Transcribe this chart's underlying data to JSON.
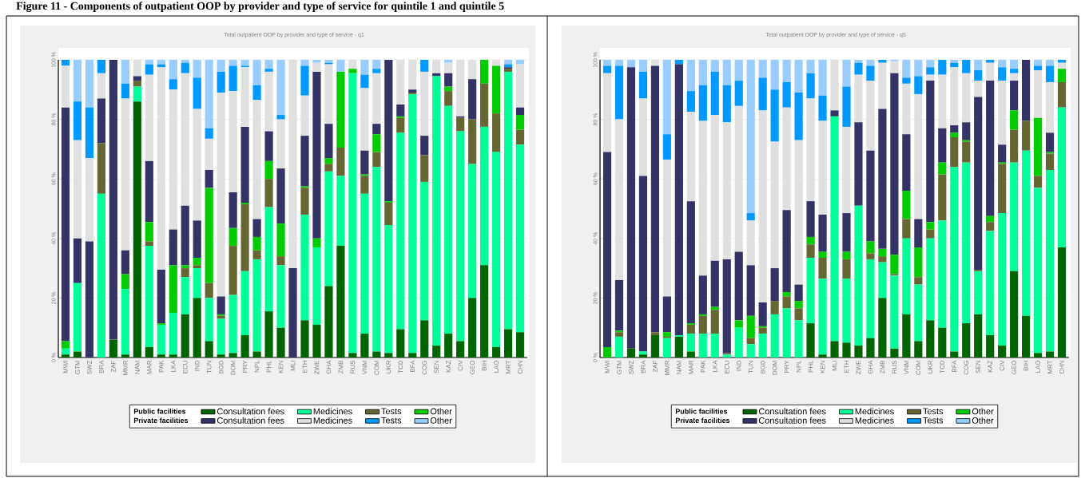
{
  "chart_data": [
    {
      "type": "bar",
      "stacked": true,
      "title": "Total outpatient OOP by provider and type of service - q1",
      "categories": [
        "MWI",
        "GTM",
        "SWZ",
        "BRA",
        "ZAF",
        "MMR",
        "NAM",
        "MAR",
        "PAK",
        "LKA",
        "ECU",
        "IND",
        "TUN",
        "BGD",
        "DOM",
        "PRY",
        "NPL",
        "PHL",
        "KEN",
        "MLI",
        "ETH",
        "ZWE",
        "GHA",
        "ZMB",
        "RUS",
        "VNM",
        "COM",
        "UKR",
        "TCD",
        "BFA",
        "COG",
        "SEN",
        "KAZ",
        "CIV",
        "GEO",
        "BIH",
        "LAO",
        "MRT",
        "CHN"
      ],
      "series": [
        {
          "name": "Consultation fees",
          "color": "#006400",
          "values": [
            1,
            2,
            0,
            0,
            6,
            1,
            86,
            3.5,
            1,
            1,
            14.5,
            20,
            5.5,
            1,
            1.5,
            7.5,
            2,
            15.5,
            10,
            0,
            12.5,
            11,
            24,
            37.5,
            1.5,
            8,
            2,
            1.5,
            9.5,
            1.5,
            12.5,
            4,
            8,
            5.5,
            20,
            31,
            3.5,
            9.5,
            8.5
          ]
        },
        {
          "name": "Medicines",
          "color": "#00ff99",
          "values": [
            2,
            23,
            0,
            55,
            0,
            22,
            5,
            34,
            10,
            14,
            12.5,
            10,
            14.5,
            12,
            19.5,
            21.5,
            31,
            35,
            21,
            0,
            35.5,
            26,
            38.5,
            23.5,
            94,
            47,
            62,
            43,
            66,
            87,
            46.5,
            90.5,
            76.5,
            70.5,
            45,
            46.5,
            65.5,
            86.5,
            63
          ]
        },
        {
          "name": "Tests",
          "color": "#666633",
          "values": [
            0,
            0,
            0,
            17,
            0,
            0,
            2,
            1.5,
            0,
            0,
            3,
            1,
            5,
            1,
            16.5,
            22.5,
            3,
            9.5,
            3,
            0,
            9,
            0,
            2.5,
            9.5,
            0,
            6,
            5,
            7.5,
            5,
            0.5,
            9,
            0,
            5,
            4.5,
            15,
            14.5,
            13,
            1,
            5
          ]
        },
        {
          "name": "Other",
          "color": "#00cc00",
          "values": [
            2.5,
            0,
            0,
            0,
            0,
            5,
            0,
            6.5,
            0.5,
            16,
            1,
            2.5,
            32,
            0.5,
            6,
            0.5,
            4.5,
            6,
            11,
            0,
            0.5,
            3,
            2,
            25.5,
            1.5,
            0.5,
            6,
            0.5,
            0.5,
            0,
            0,
            0,
            1.5,
            0,
            0,
            8,
            16,
            0,
            5
          ]
        },
        {
          "name": "Consultation fees",
          "color": "#333366",
          "values": [
            78.5,
            15,
            39,
            15,
            94,
            8,
            1.5,
            20.5,
            18,
            12,
            20,
            12.5,
            6,
            6,
            12,
            25.5,
            6,
            10,
            18.5,
            30,
            17,
            56,
            11.5,
            0,
            0,
            8,
            3.5,
            47.5,
            4,
            1,
            6.5,
            1,
            4.5,
            0.5,
            13.5,
            0,
            0,
            0.5,
            2.5
          ]
        },
        {
          "name": "Medicines",
          "color": "#e0e0e0",
          "values": [
            14,
            33,
            28,
            8.5,
            0,
            51,
            5.5,
            29,
            68,
            47,
            44.5,
            37.5,
            10.5,
            68.5,
            34,
            20,
            40,
            20,
            16.5,
            70,
            13.5,
            3,
            20,
            0,
            3,
            21,
            17,
            0,
            15,
            10,
            21.5,
            4.5,
            3.5,
            19,
            6.5,
            0,
            2,
            0,
            14.5
          ]
        },
        {
          "name": "Tests",
          "color": "#0099ff",
          "values": [
            2,
            13,
            17,
            4.5,
            0,
            5,
            0,
            3.5,
            1,
            3.5,
            3.5,
            10.5,
            3.5,
            7,
            8.5,
            0.5,
            5,
            1,
            1.5,
            0,
            10,
            0,
            0.5,
            0,
            0,
            4.5,
            1.5,
            0,
            0,
            0,
            4,
            0,
            0,
            0,
            0,
            0,
            0,
            1,
            0
          ]
        },
        {
          "name": "Other",
          "color": "#99ccff",
          "values": [
            0,
            14,
            16,
            0,
            0,
            8,
            0,
            1.5,
            1.5,
            6.5,
            1,
            6,
            23,
            4,
            2,
            2,
            8.5,
            3,
            18.5,
            0,
            2,
            1,
            1,
            4,
            0,
            5,
            3,
            0,
            0,
            0,
            0,
            0,
            1,
            0,
            0,
            0,
            0,
            1.5,
            1.5
          ]
        }
      ],
      "ylim": [
        0,
        100
      ],
      "yticks": [
        {
          "value": 0,
          "label": "0 %"
        },
        {
          "value": 20,
          "label": "20 %"
        },
        {
          "value": 40,
          "label": "40 %"
        },
        {
          "value": 60,
          "label": "60 %"
        },
        {
          "value": 80,
          "label": "80 %"
        },
        {
          "value": 100,
          "label": "100 %"
        }
      ],
      "grid": "y",
      "legend": "bottom",
      "annotations": [
        "Public facilities",
        "Private facilities",
        "Figure 11 - Components of outpatient OOP by provider and type of service for quintile 1 and quintile 5"
      ]
    },
    {
      "type": "bar",
      "stacked": true,
      "title": "Total outpatient OOP by provider and type of service - q5",
      "categories": [
        "MWI",
        "GTM",
        "SWZ",
        "BRA",
        "ZAF",
        "MMR",
        "NAM",
        "MAR",
        "PAK",
        "LKA",
        "ECU",
        "IND",
        "TUN",
        "BGD",
        "DOM",
        "PRY",
        "NPL",
        "PHL",
        "KEN",
        "MLI",
        "ETH",
        "ZWE",
        "GHA",
        "ZMB",
        "RUS",
        "VNM",
        "COM",
        "UKR",
        "TCD",
        "BFA",
        "COG",
        "SEN",
        "KAZ",
        "CIV",
        "GEO",
        "BIH",
        "LAO",
        "MRT",
        "CHN"
      ],
      "series": [
        {
          "name": "Consultation fees",
          "color": "#006400",
          "values": [
            0,
            0,
            3,
            1,
            7.5,
            0,
            7,
            2,
            0,
            0,
            0,
            0,
            0,
            0,
            0,
            0,
            0,
            11.5,
            1,
            5.5,
            5,
            4,
            6.5,
            20,
            3,
            14.5,
            5.5,
            12.5,
            10,
            2,
            11.5,
            14.5,
            7.5,
            4,
            29,
            14,
            1.5,
            2,
            37
          ]
        },
        {
          "name": "Medicines",
          "color": "#00ff99",
          "values": [
            0,
            7,
            0,
            1,
            0,
            6.5,
            0.5,
            6,
            8,
            8,
            1,
            10,
            4.5,
            8,
            14.5,
            16.5,
            12.5,
            22,
            25.5,
            75.5,
            21.5,
            47,
            26.5,
            12,
            24.5,
            25.5,
            19,
            27.5,
            36,
            62,
            54,
            14.5,
            35,
            44.5,
            36.5,
            55.5,
            55.5,
            61,
            47
          ]
        },
        {
          "name": "Tests",
          "color": "#666633",
          "values": [
            0,
            1.5,
            0,
            0,
            1,
            0.5,
            0,
            3,
            6,
            8,
            0.5,
            0,
            2,
            2,
            4.5,
            4,
            4,
            4.5,
            7,
            0,
            6.5,
            0,
            2,
            2,
            0.5,
            6.5,
            2.5,
            3,
            15.5,
            10,
            7,
            0.5,
            3,
            16.5,
            11,
            10,
            4,
            5.5,
            8.5
          ]
        },
        {
          "name": "Other",
          "color": "#00cc00",
          "values": [
            3.5,
            0.5,
            0,
            0,
            0,
            1.5,
            0,
            0.5,
            0.5,
            1,
            0,
            2.5,
            7.5,
            0.5,
            0,
            1.5,
            2.5,
            2.5,
            2,
            0,
            2.5,
            0,
            4,
            2.5,
            6.5,
            9.5,
            10,
            2.5,
            4,
            1.5,
            0.5,
            0,
            2,
            0.5,
            6.5,
            0,
            19.5,
            0.5,
            4.5
          ]
        },
        {
          "name": "Consultation fees",
          "color": "#333366",
          "values": [
            65.5,
            17,
            94.5,
            59,
            89.5,
            12,
            91,
            41,
            13,
            15.5,
            31.5,
            23,
            17,
            8,
            11,
            27.5,
            5.5,
            12,
            12.5,
            2,
            13,
            28,
            30.5,
            47,
            61,
            19,
            9.5,
            47.5,
            11.5,
            2.5,
            6,
            58,
            45.5,
            6,
            10,
            20.5,
            0,
            6.5,
            0
          ]
        },
        {
          "name": "Medicines",
          "color": "#e0e0e0",
          "values": [
            26.5,
            54,
            0,
            26,
            2,
            46,
            0,
            30,
            52,
            49,
            46,
            49,
            15,
            64.5,
            42.5,
            34.5,
            48.5,
            34.5,
            31.5,
            17,
            29,
            16,
            23.5,
            15.5,
            4,
            17,
            42,
            2,
            18,
            19.5,
            16.5,
            5.5,
            6,
            21.5,
            2.5,
            0,
            16,
            17,
            2
          ]
        },
        {
          "name": "Tests",
          "color": "#0099ff",
          "values": [
            2.5,
            18,
            0,
            9,
            0,
            8.5,
            1.5,
            7,
            12,
            14.5,
            12.5,
            8.5,
            2.5,
            11,
            17.5,
            8.5,
            16,
            8.5,
            8.5,
            0,
            13.5,
            4,
            5,
            1,
            0,
            2,
            6,
            2.5,
            5,
            1.5,
            4.5,
            3.5,
            1,
            4.5,
            1.5,
            0,
            1.5,
            5.5,
            1
          ]
        },
        {
          "name": "Other",
          "color": "#99ccff",
          "values": [
            2,
            2,
            2.5,
            4,
            0,
            25,
            0,
            10.5,
            8.5,
            4,
            8.5,
            7,
            51.5,
            6,
            10,
            7.5,
            11,
            4.5,
            12,
            0,
            9,
            1,
            2,
            0,
            0.5,
            6,
            5.5,
            2.5,
            0,
            1,
            0,
            3.5,
            0,
            2.5,
            3,
            0,
            2,
            2,
            0
          ]
        }
      ],
      "ylim": [
        0,
        100
      ],
      "yticks": [
        {
          "value": 0,
          "label": "0 %"
        },
        {
          "value": 20,
          "label": "20 %"
        },
        {
          "value": 40,
          "label": "40 %"
        },
        {
          "value": 60,
          "label": "60 %"
        },
        {
          "value": 80,
          "label": "80 %"
        },
        {
          "value": 100,
          "label": "100 %"
        }
      ],
      "grid": "y",
      "legend": "bottom",
      "annotations": [
        "Public facilities",
        "Private facilities"
      ]
    }
  ]
}
